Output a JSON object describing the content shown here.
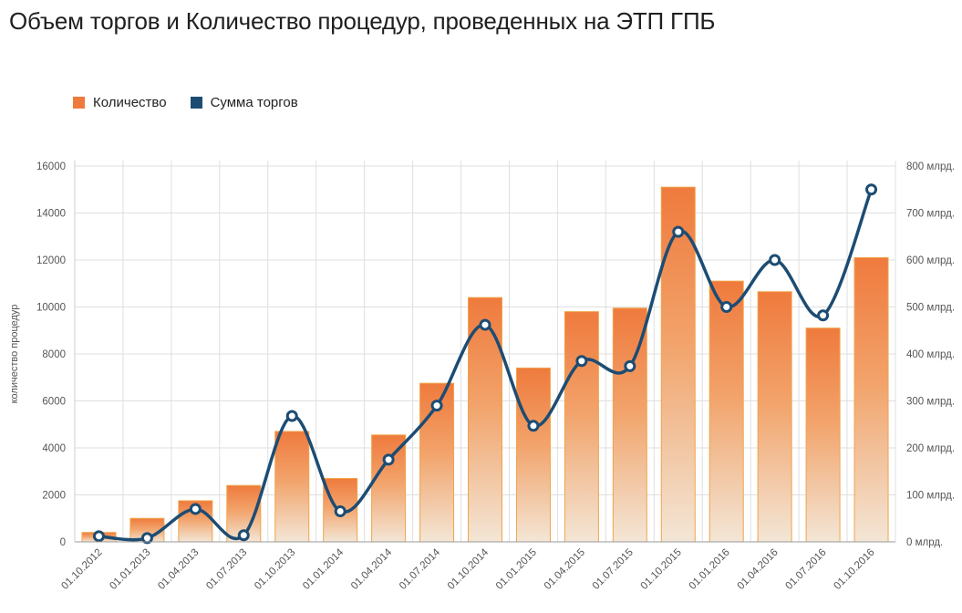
{
  "colors": {
    "bar_top": "#ef7a3d",
    "bar_bottom": "#f3e3d2",
    "bar_stroke": "#f0a44a",
    "line": "#1d4c73",
    "grid": "#dfdfdf"
  },
  "chart_data": {
    "type": "bar",
    "title": "Объем торгов и Количество процедур, проведенных на ЭТП ГПБ",
    "ylabel": "количество процедур",
    "y2label": "",
    "ylim": [
      0,
      16000
    ],
    "y2lim": [
      0,
      800
    ],
    "y_ticks": [
      "0",
      "2000",
      "4000",
      "6000",
      "8000",
      "10000",
      "12000",
      "14000",
      "16000"
    ],
    "y2_ticks": [
      "0 млрд.",
      "100 млрд.",
      "200 млрд.",
      "300 млрд.",
      "400 млрд.",
      "500 млрд.",
      "600 млрд.",
      "700 млрд.",
      "800 млрд."
    ],
    "grid": true,
    "legend_position": "top-left",
    "categories": [
      "01.10.2012",
      "01.01.2013",
      "01.04.2013",
      "01.07.2013",
      "01.10.2013",
      "01.01.2014",
      "01.04.2014",
      "01.07.2014",
      "01.10.2014",
      "01.01.2015",
      "01.04.2015",
      "01.07.2015",
      "01.10.2015",
      "01.01.2016",
      "01.04.2016",
      "01.07.2016",
      "01.10.2016"
    ],
    "series": [
      {
        "name": "Количество",
        "type": "bar",
        "axis": "left",
        "values": [
          400,
          1000,
          1750,
          2400,
          4700,
          2700,
          4550,
          6750,
          10400,
          7400,
          9800,
          9950,
          15100,
          11100,
          10650,
          9100,
          12100
        ]
      },
      {
        "name": "Сумма торгов",
        "type": "line",
        "axis": "right",
        "values": [
          12,
          8,
          70,
          14,
          268,
          65,
          175,
          290,
          462,
          247,
          385,
          374,
          660,
          500,
          600,
          482,
          750
        ]
      }
    ]
  }
}
